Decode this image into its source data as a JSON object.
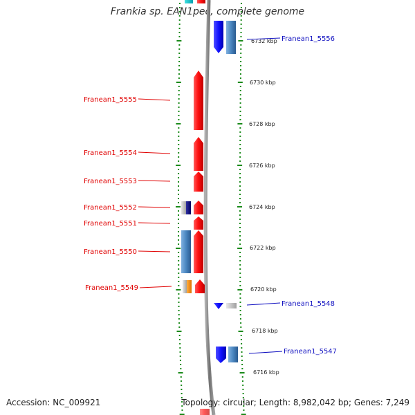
{
  "header": {
    "title": "Frankia sp. EAN1pec, complete genome"
  },
  "footer": {
    "accession": "Accession: NC_009921",
    "topology": "Topology: circular; Length: 8,982,042 bp; Genes: 7,249"
  },
  "scale": {
    "unit": "kbp",
    "ticks": [
      {
        "label": "6732 kbp",
        "kbp": 6732
      },
      {
        "label": "6730 kbp",
        "kbp": 6730
      },
      {
        "label": "6728 kbp",
        "kbp": 6728
      },
      {
        "label": "6726 kbp",
        "kbp": 6726
      },
      {
        "label": "6724 kbp",
        "kbp": 6724
      },
      {
        "label": "6722 kbp",
        "kbp": 6722
      },
      {
        "label": "6720 kbp",
        "kbp": 6720
      },
      {
        "label": "6718 kbp",
        "kbp": 6718
      },
      {
        "label": "6716 kbp",
        "kbp": 6716
      }
    ]
  },
  "genes": {
    "highlighted_color": "#e00000",
    "other_color": "#1010c0",
    "labels_left": [
      "Franean1_5555",
      "Franean1_5554",
      "Franean1_5553",
      "Franean1_5552",
      "Franean1_5551",
      "Franean1_5550",
      "Franean1_5549"
    ],
    "labels_right": [
      "Franean1_5556",
      "Franean1_5548",
      "Franean1_5547"
    ]
  },
  "colors": {
    "forward_strand": "#ff1a1a",
    "reverse_strand": "#1a1aff",
    "other_feature": "#4a86c0",
    "backbone": "#8a8a8a",
    "tick_marks": "#1a8a1a"
  }
}
